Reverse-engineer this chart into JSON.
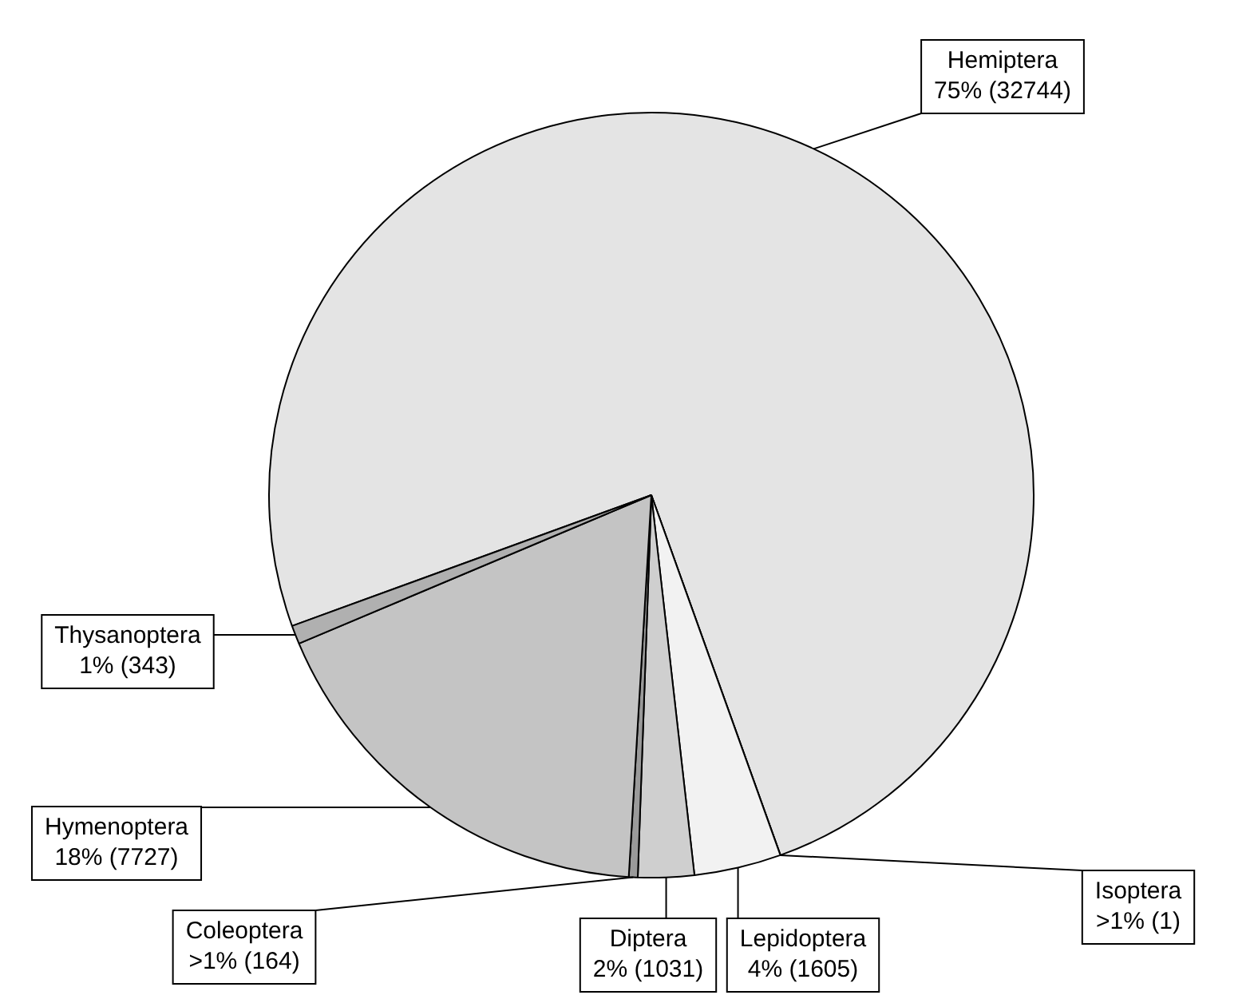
{
  "chart_data": {
    "type": "pie",
    "categories": [
      "Hemiptera",
      "Isoptera",
      "Lepidoptera",
      "Diptera",
      "Coleoptera",
      "Hymenoptera",
      "Thysanoptera"
    ],
    "values": [
      32744,
      1,
      1605,
      1031,
      164,
      7727,
      343
    ],
    "value_labels": [
      "75% (32744)",
      ">1% (1)",
      "4% (1605)",
      "2% (1031)",
      ">1% (164)",
      "18% (7727)",
      "1% (343)"
    ],
    "colors": [
      "#e4e4e4",
      "#ffffff",
      "#f2f2f2",
      "#cfcfcf",
      "#9a9a9a",
      "#c4c4c4",
      "#b0b0b0"
    ],
    "legend": false
  }
}
